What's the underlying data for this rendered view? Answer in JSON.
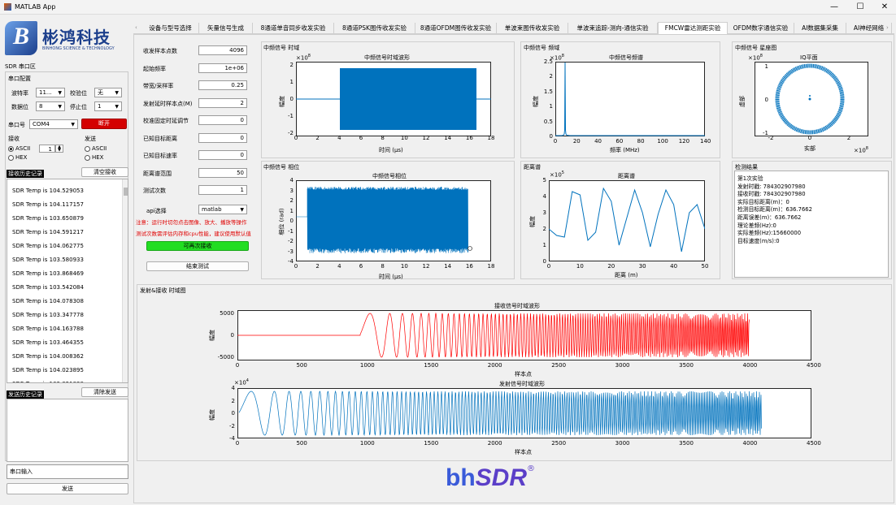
{
  "window": {
    "title": "MATLAB App",
    "min": "—",
    "max": "☐",
    "close": "✕"
  },
  "logo": {
    "brand": "彬鸿科技",
    "sub": "BINHONG SCIENCE & TECHNOLOGY"
  },
  "sidebar": {
    "section_title": "SDR 串口区",
    "serial_cfg": "串口配置",
    "baud_label": "波特率",
    "baud_value": "11...",
    "parity_label": "校验位",
    "parity_value": "无",
    "databits_label": "数据位",
    "databits_value": "8",
    "stopbits_label": "停止位",
    "stopbits_value": "1",
    "port_label": "串口号",
    "port_value": "COM4",
    "disconnect": "断开",
    "recv_label": "接收",
    "send_label": "发送",
    "recv_ascii": "ASCII",
    "recv_hex": "HEX",
    "recv_spin": "1",
    "send_ascii": "ASCII",
    "send_hex": "HEX",
    "recv_history": "接收历史记录",
    "clear_recv": "清空接收",
    "log": [
      "SDR Temp is 104.529053",
      "SDR Temp is 104.117157",
      "SDR Temp is 103.650879",
      "SDR Temp is 104.591217",
      "SDR Temp is 104.062775",
      "SDR Temp is 103.580933",
      "SDR Temp is 103.868469",
      "SDR Temp is 103.542084",
      "SDR Temp is 104.078308",
      "SDR Temp is 103.347778",
      "SDR Temp is 104.163788",
      "SDR Temp is 103.464355",
      "SDR Temp is 104.008362",
      "SDR Temp is 104.023895",
      "SDR Temp is 103.821838"
    ],
    "send_history": "发送历史记录",
    "clear_send": "清除发送",
    "serial_input": "串口输入",
    "send_btn": "发送"
  },
  "tabs": [
    "设备与型号选择",
    "矢量信号生成",
    "8通道单音同步收发实验",
    "8通道PSK图传收发实验",
    "8通道OFDM图传收发实验",
    "单波束图传收发实验",
    "单波束追踪-测向-通信实验",
    "FMCW雷达测距实验",
    "OFDM数字通信实验",
    "AI数据集采集",
    "AI神经网络"
  ],
  "active_tab": "FMCW雷达测距实验",
  "params": {
    "rows": [
      {
        "label": "收发样本点数",
        "value": "4096"
      },
      {
        "label": "起始频率",
        "value": "1e+06"
      },
      {
        "label": "带宽/采样率",
        "value": "0.25"
      },
      {
        "label": "发射延时样本点(M)",
        "value": "2"
      },
      {
        "label": "校准固定时延调节",
        "value": "0"
      },
      {
        "label": "已知目标距离",
        "value": "0"
      },
      {
        "label": "已知目标速率",
        "value": "0"
      },
      {
        "label": "距离谱范围",
        "value": "50"
      },
      {
        "label": "测试次数",
        "value": "1"
      }
    ],
    "api_label": "api选择",
    "api_value": "matlab",
    "warning1": "注意：运行时切勿点击图像、放大、播放等操作",
    "warning2": "测试次数需评估内存和cpu性能，建议使用默认值",
    "start_btn": "可再次接收",
    "stop_btn": "结束测试"
  },
  "plots": {
    "if_time": {
      "panel": "中频信号 时域",
      "title": "中频信号时域波形",
      "exp": "×10",
      "exp_pow": "8",
      "ylabel": "幅度",
      "xlabel": "时间 (μs)",
      "xticks": [
        "0",
        "2",
        "4",
        "6",
        "8",
        "10",
        "12",
        "14",
        "16",
        "18"
      ],
      "yticks": [
        "2",
        "1",
        "0",
        "-1",
        "-2"
      ]
    },
    "if_freq": {
      "panel": "中频信号 频域",
      "title": "中频信号频谱",
      "exp": "×10",
      "exp_pow": "8",
      "ylabel": "幅度",
      "xlabel": "频率 (MHz)",
      "xticks": [
        "0",
        "20",
        "40",
        "60",
        "80",
        "100",
        "120",
        "140"
      ],
      "yticks": [
        "2.5",
        "2",
        "1.5",
        "1",
        "0.5",
        "0"
      ]
    },
    "iq": {
      "panel": "中频信号 星座图",
      "title": "IQ平面",
      "exp": "×10",
      "exp_pow": "8",
      "exp_x": "×10",
      "exp_x_pow": "8",
      "ylabel": "虚部",
      "xlabel": "实部",
      "xticks": [
        "-2",
        "0",
        "2"
      ],
      "yticks": [
        "1",
        "0",
        "-1"
      ]
    },
    "if_phase": {
      "panel": "中频信号 相位",
      "title": "中频信号相位",
      "ylabel": "相位 (rad)",
      "xlabel": "时间 (μs)",
      "xticks": [
        "0",
        "2",
        "4",
        "6",
        "8",
        "10",
        "12",
        "14",
        "16",
        "18"
      ],
      "yticks": [
        "4",
        "3",
        "2",
        "1",
        "0",
        "-1",
        "-2",
        "-3",
        "-4"
      ]
    },
    "range": {
      "panel": "距离谱",
      "title": "距离谱",
      "exp": "×10",
      "exp_pow": "5",
      "ylabel": "幅度",
      "xlabel": "距离 (m)",
      "xticks": [
        "0",
        "10",
        "20",
        "30",
        "40",
        "50"
      ],
      "yticks": [
        "5",
        "4",
        "3",
        "2",
        "1",
        "0"
      ],
      "values": [
        2.0,
        1.6,
        1.5,
        4.3,
        4.1,
        1.3,
        1.8,
        4.5,
        3.7,
        1.0,
        2.7,
        4.4,
        3.0,
        0.9,
        2.9,
        4.4,
        3.5,
        0.6,
        3.0,
        3.5,
        2.0
      ]
    },
    "rx": {
      "title": "接收信号时域波形",
      "ylabel": "幅度",
      "xlabel": "样本点",
      "xticks": [
        "0",
        "500",
        "1000",
        "1500",
        "2000",
        "2500",
        "3000",
        "3500",
        "4000",
        "4500"
      ],
      "yticks": [
        "5000",
        "0",
        "-5000"
      ]
    },
    "tx": {
      "title": "发射信号时域波形",
      "exp": "×10",
      "exp_pow": "4",
      "ylabel": "幅度",
      "xlabel": "样本点",
      "xticks": [
        "0",
        "500",
        "1000",
        "1500",
        "2000",
        "2500",
        "3000",
        "3500",
        "4000",
        "4500"
      ],
      "yticks": [
        "4",
        "2",
        "0",
        "-2",
        "-4"
      ]
    }
  },
  "result": {
    "panel": "检测结果",
    "lines": [
      "第1次实验",
      "发射时戳: 784302907980",
      "接收时戳: 784302907980",
      "实际目标距离(m)：0",
      "检测目标距离(m)：636.7662",
      "距离误差(m)：636.7662",
      "理论差频(Hz):0",
      "实际差频(Hz):15660000",
      "目标速度(m/s):0"
    ]
  },
  "bottom_panel": "发射&接收 时域图",
  "footer_logo": {
    "a": "bh",
    "b": "SDR",
    "reg": "®"
  },
  "colors": {
    "blue": "#0072bd",
    "red": "#ff0000",
    "accent_red": "#d40000",
    "green": "#22dd22"
  }
}
